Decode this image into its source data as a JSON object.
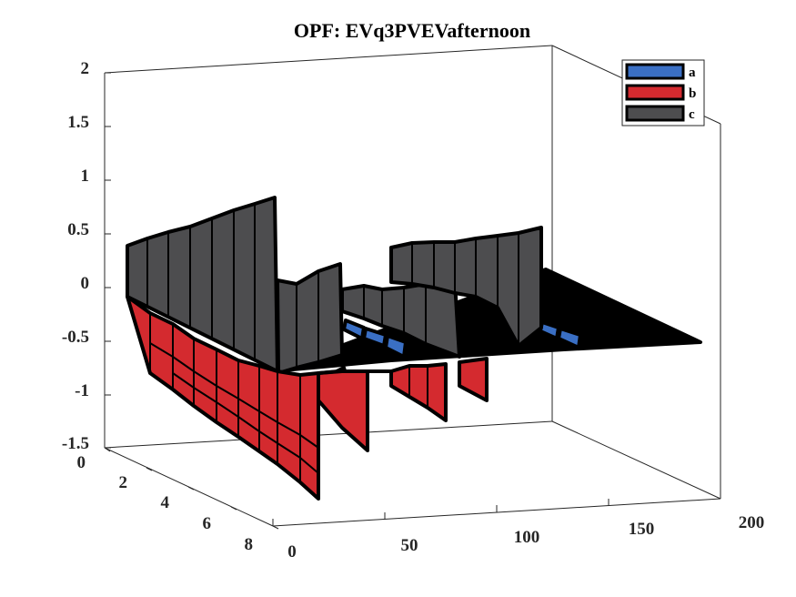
{
  "chart_data": {
    "type": "3d-waterfall",
    "title": "OPF: EVq3PVEVafternoon",
    "xlabel": "",
    "ylabel": "",
    "zlabel": "",
    "xlim": [
      0,
      200
    ],
    "ylim": [
      0,
      8
    ],
    "zlim": [
      -1.5,
      2
    ],
    "x_ticks": [
      "0",
      "50",
      "100",
      "150",
      "200"
    ],
    "y_ticks": [
      "0",
      "2",
      "4",
      "6",
      "8"
    ],
    "z_ticks": [
      "-1.5",
      "-1",
      "-0.5",
      "0",
      "0.5",
      "1",
      "1.5",
      "2"
    ],
    "legend": {
      "placement": "top-right",
      "entries": [
        {
          "label": "a",
          "color": "#3a6fc4"
        },
        {
          "label": "b",
          "color": "#d42a2f"
        },
        {
          "label": "c",
          "color": "#4d4d4f"
        }
      ]
    },
    "series": [
      {
        "name": "c",
        "color": "#4d4d4f",
        "points": [
          [
            1,
            0.2
          ],
          [
            8,
            0.35
          ],
          [
            15,
            0.4
          ],
          [
            22,
            0.45
          ],
          [
            29,
            0.5
          ],
          [
            36,
            0.55
          ],
          [
            43,
            0.62
          ],
          [
            50,
            0.68
          ],
          [
            55,
            0.75
          ],
          [
            63,
            0.0
          ],
          [
            70,
            0.05
          ],
          [
            77,
            0.1
          ],
          [
            85,
            0.15
          ],
          [
            91,
            0.2
          ],
          [
            100,
            0.05
          ],
          [
            108,
            0.1
          ],
          [
            116,
            0.05
          ],
          [
            124,
            0.0
          ],
          [
            131,
            0.05
          ],
          [
            140,
            0.42
          ],
          [
            148,
            0.45
          ],
          [
            156,
            0.45
          ],
          [
            164,
            0.45
          ],
          [
            172,
            0.5
          ],
          [
            178,
            0.55
          ]
        ]
      },
      {
        "name": "a",
        "color": "#3a6fc4",
        "points": [
          [
            50,
            -0.35
          ],
          [
            58,
            -0.45
          ],
          [
            64,
            -0.55
          ],
          [
            98,
            -0.35
          ],
          [
            106,
            -0.4
          ],
          [
            114,
            -0.45
          ]
        ]
      },
      {
        "name": "b",
        "color": "#d42a2f",
        "points": [
          [
            1,
            -0.1
          ],
          [
            8,
            -0.25
          ],
          [
            15,
            -0.4
          ],
          [
            22,
            -0.55
          ],
          [
            29,
            -0.7
          ],
          [
            36,
            -0.85
          ],
          [
            43,
            -1.0
          ],
          [
            50,
            -1.15
          ],
          [
            55,
            -1.3
          ],
          [
            63,
            -0.7
          ],
          [
            70,
            -0.8
          ],
          [
            77,
            -0.85
          ],
          [
            85,
            -0.95
          ],
          [
            91,
            -1.0
          ],
          [
            100,
            -0.6
          ],
          [
            108,
            -0.65
          ],
          [
            116,
            -0.7
          ]
        ]
      }
    ]
  }
}
